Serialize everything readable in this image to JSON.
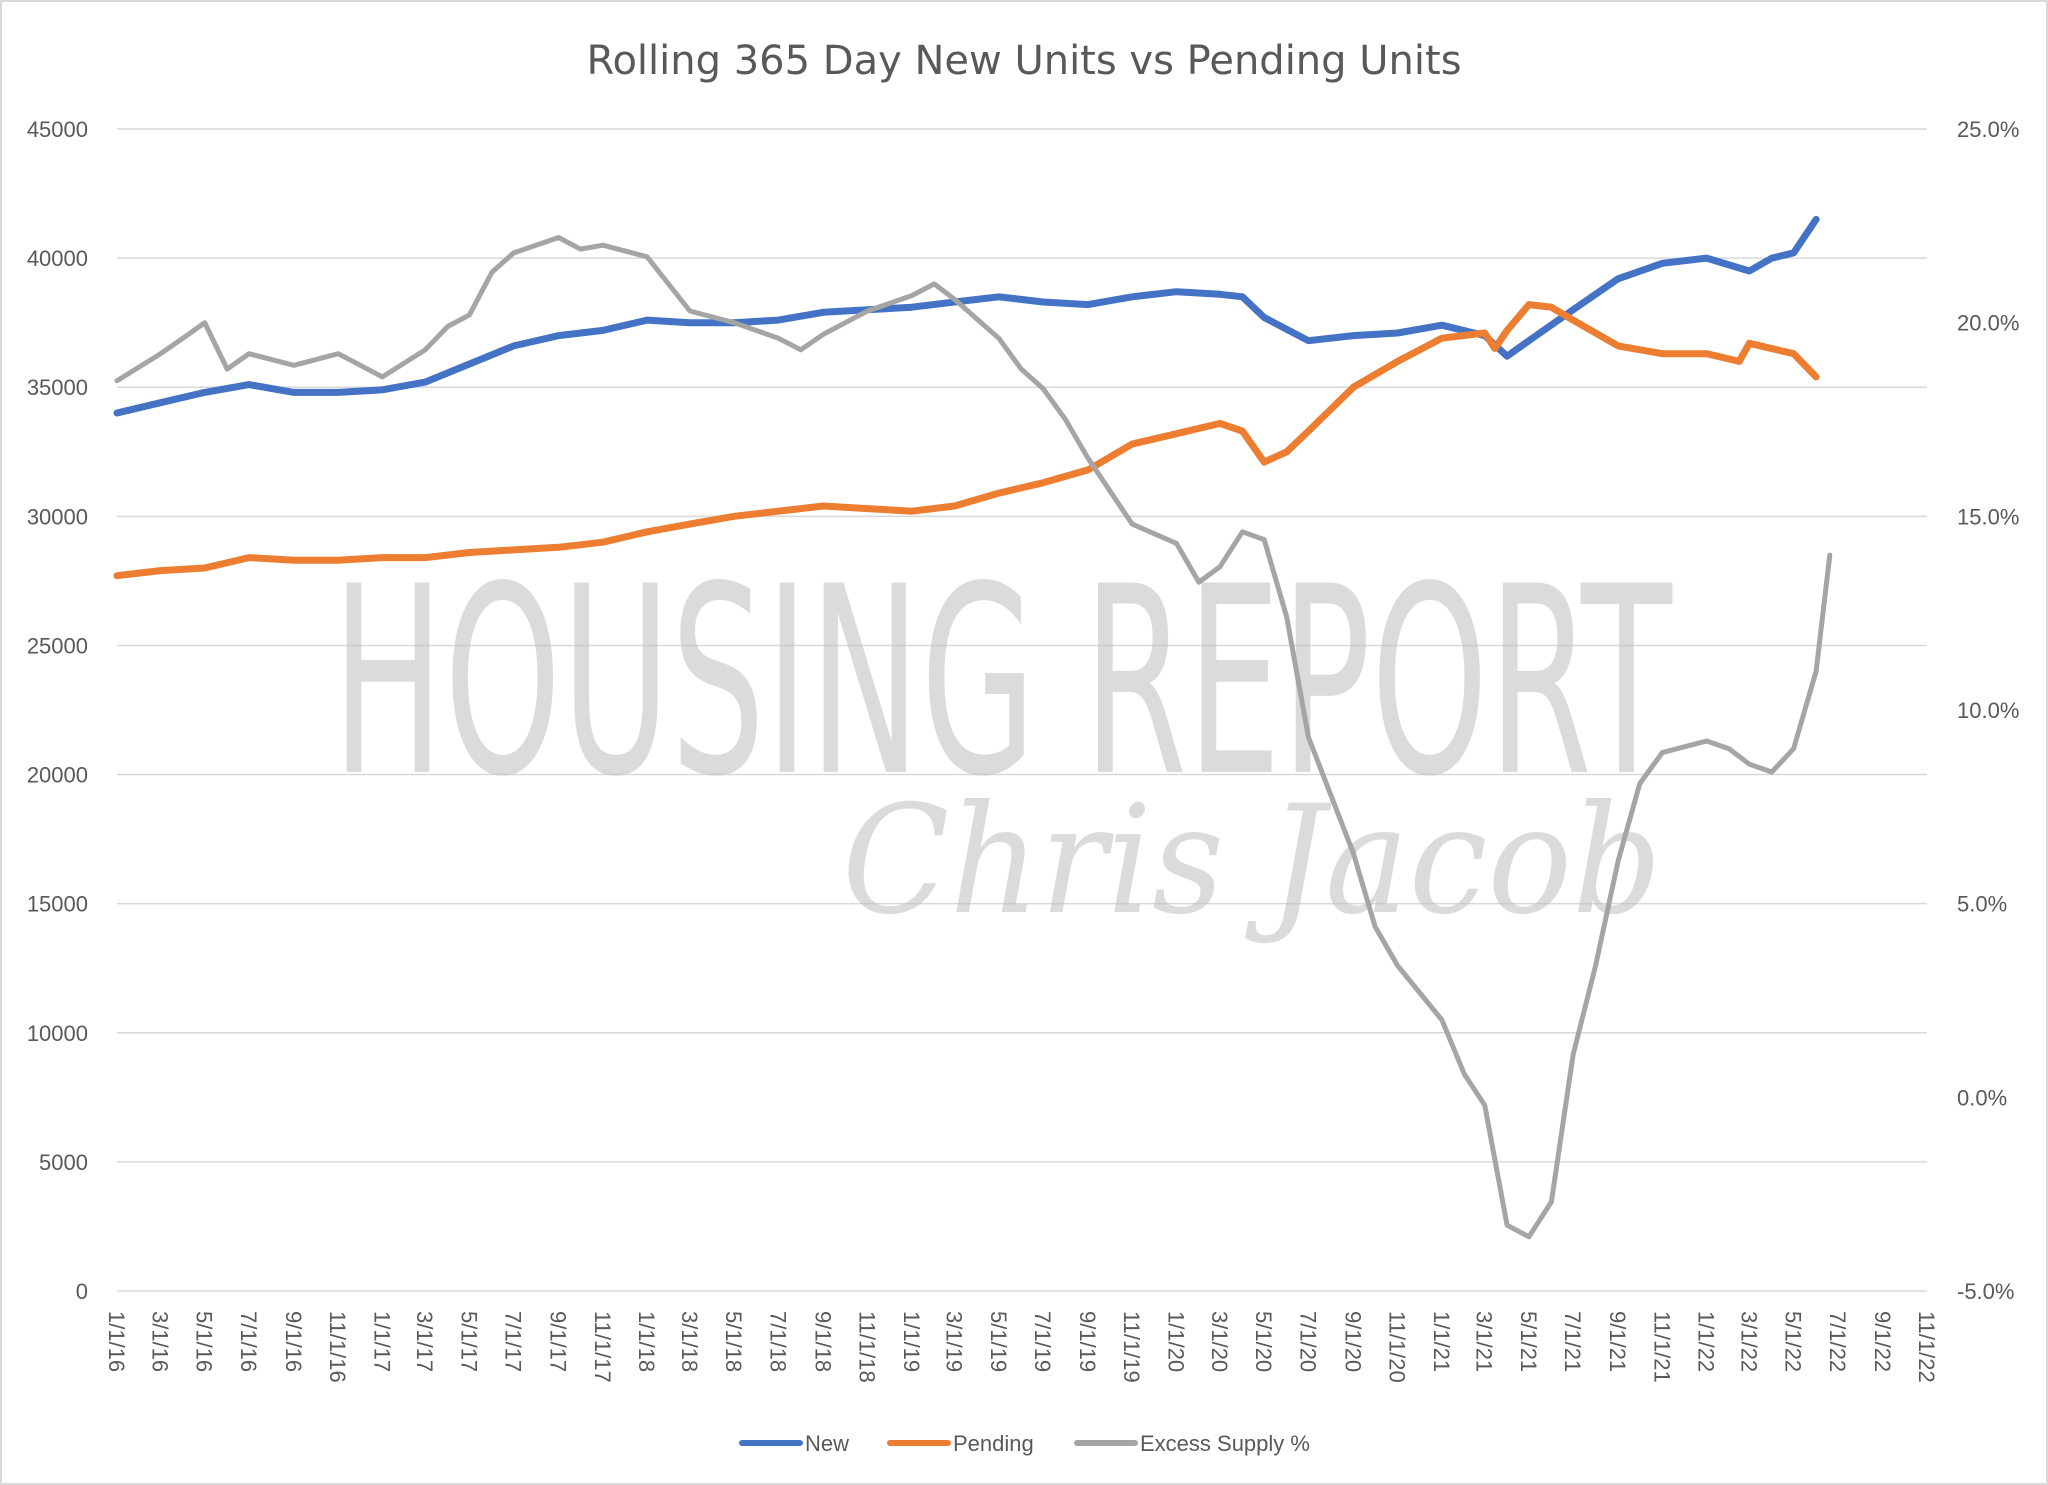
{
  "chart_data": {
    "type": "line",
    "title": "Rolling 365 Day New Units vs Pending Units",
    "watermark": {
      "line1": "HOUSING REPORT",
      "line2": "Chris Jacob"
    },
    "x_tick_labels": [
      "1/1/16",
      "3/1/16",
      "5/1/16",
      "7/1/16",
      "9/1/16",
      "11/1/16",
      "1/1/17",
      "3/1/17",
      "5/1/17",
      "7/1/17",
      "9/1/17",
      "11/1/17",
      "1/1/18",
      "3/1/18",
      "5/1/18",
      "7/1/18",
      "9/1/18",
      "11/1/18",
      "1/1/19",
      "3/1/19",
      "5/1/19",
      "7/1/19",
      "9/1/19",
      "11/1/19",
      "1/1/20",
      "3/1/20",
      "5/1/20",
      "7/1/20",
      "9/1/20",
      "11/1/20",
      "1/1/21",
      "3/1/21",
      "5/1/21",
      "7/1/21",
      "9/1/21",
      "11/1/21",
      "1/1/22",
      "3/1/22",
      "5/1/22",
      "7/1/22",
      "9/1/22",
      "11/1/22"
    ],
    "y_left": {
      "min": 0,
      "max": 45000,
      "ticks": [
        "0",
        "5000",
        "10000",
        "15000",
        "20000",
        "25000",
        "30000",
        "35000",
        "40000",
        "45000"
      ]
    },
    "y_right": {
      "min": -5.0,
      "max": 25.0,
      "ticks": [
        "-5.0%",
        "0.0%",
        "5.0%",
        "10.0%",
        "15.0%",
        "20.0%",
        "25.0%"
      ]
    },
    "gridlines": "horizontal",
    "legend_position": "bottom",
    "series": [
      {
        "name": "New",
        "color": "#4472C4",
        "axis": "left",
        "points": [
          [
            "1/1/16",
            34000
          ],
          [
            "3/1/16",
            34400
          ],
          [
            "5/1/16",
            34800
          ],
          [
            "7/1/16",
            35100
          ],
          [
            "9/1/16",
            34800
          ],
          [
            "11/1/16",
            34800
          ],
          [
            "1/1/17",
            34900
          ],
          [
            "3/1/17",
            35200
          ],
          [
            "5/1/17",
            35900
          ],
          [
            "7/1/17",
            36600
          ],
          [
            "9/1/17",
            37000
          ],
          [
            "11/1/17",
            37200
          ],
          [
            "1/1/18",
            37600
          ],
          [
            "3/1/18",
            37500
          ],
          [
            "5/1/18",
            37500
          ],
          [
            "7/1/18",
            37600
          ],
          [
            "9/1/18",
            37900
          ],
          [
            "11/1/18",
            38000
          ],
          [
            "1/1/19",
            38100
          ],
          [
            "3/1/19",
            38300
          ],
          [
            "5/1/19",
            38500
          ],
          [
            "7/1/19",
            38300
          ],
          [
            "9/1/19",
            38200
          ],
          [
            "11/1/19",
            38500
          ],
          [
            "1/1/20",
            38700
          ],
          [
            "3/1/20",
            38600
          ],
          [
            "4/1/20",
            38500
          ],
          [
            "5/1/20",
            37700
          ],
          [
            "7/1/20",
            36800
          ],
          [
            "9/1/20",
            37000
          ],
          [
            "11/1/20",
            37100
          ],
          [
            "1/1/21",
            37400
          ],
          [
            "3/1/21",
            37000
          ],
          [
            "4/1/21",
            36200
          ],
          [
            "5/1/21",
            36800
          ],
          [
            "7/1/21",
            38000
          ],
          [
            "9/1/21",
            39200
          ],
          [
            "11/1/21",
            39800
          ],
          [
            "1/1/22",
            40000
          ],
          [
            "3/1/22",
            39500
          ],
          [
            "4/1/22",
            40000
          ],
          [
            "5/1/22",
            40200
          ],
          [
            "6/1/22",
            41500
          ]
        ]
      },
      {
        "name": "Pending",
        "color": "#ED7D31",
        "axis": "left",
        "points": [
          [
            "1/1/16",
            27700
          ],
          [
            "3/1/16",
            27900
          ],
          [
            "5/1/16",
            28000
          ],
          [
            "7/1/16",
            28400
          ],
          [
            "9/1/16",
            28300
          ],
          [
            "11/1/16",
            28300
          ],
          [
            "1/1/17",
            28400
          ],
          [
            "3/1/17",
            28400
          ],
          [
            "5/1/17",
            28600
          ],
          [
            "7/1/17",
            28700
          ],
          [
            "9/1/17",
            28800
          ],
          [
            "11/1/17",
            29000
          ],
          [
            "1/1/18",
            29400
          ],
          [
            "3/1/18",
            29700
          ],
          [
            "5/1/18",
            30000
          ],
          [
            "7/1/18",
            30200
          ],
          [
            "9/1/18",
            30400
          ],
          [
            "11/1/18",
            30300
          ],
          [
            "1/1/19",
            30200
          ],
          [
            "3/1/19",
            30400
          ],
          [
            "5/1/19",
            30900
          ],
          [
            "7/1/19",
            31300
          ],
          [
            "9/1/19",
            31800
          ],
          [
            "11/1/19",
            32800
          ],
          [
            "1/1/20",
            33200
          ],
          [
            "3/1/20",
            33600
          ],
          [
            "4/1/20",
            33300
          ],
          [
            "5/1/20",
            32100
          ],
          [
            "6/1/20",
            32500
          ],
          [
            "7/1/20",
            33300
          ],
          [
            "9/1/20",
            35000
          ],
          [
            "11/1/20",
            36000
          ],
          [
            "1/1/21",
            36900
          ],
          [
            "3/1/21",
            37100
          ],
          [
            "3/15/21",
            36500
          ],
          [
            "4/1/21",
            37200
          ],
          [
            "5/1/21",
            38200
          ],
          [
            "6/1/21",
            38100
          ],
          [
            "7/1/21",
            37600
          ],
          [
            "9/1/21",
            36600
          ],
          [
            "11/1/21",
            36300
          ],
          [
            "1/1/22",
            36300
          ],
          [
            "2/15/22",
            36000
          ],
          [
            "3/1/22",
            36700
          ],
          [
            "5/1/22",
            36300
          ],
          [
            "6/1/22",
            35400
          ]
        ]
      },
      {
        "name": "Excess Supply %",
        "color": "#A5A5A5",
        "axis": "right",
        "points": [
          [
            "1/1/16",
            18.5
          ],
          [
            "3/1/16",
            19.2
          ],
          [
            "4/1/16",
            19.6
          ],
          [
            "5/1/16",
            20.0
          ],
          [
            "6/1/16",
            18.8
          ],
          [
            "7/1/16",
            19.2
          ],
          [
            "9/1/16",
            18.9
          ],
          [
            "11/1/16",
            19.2
          ],
          [
            "1/1/17",
            18.6
          ],
          [
            "3/1/17",
            19.3
          ],
          [
            "4/1/17",
            19.9
          ],
          [
            "5/1/17",
            20.2
          ],
          [
            "6/1/17",
            21.3
          ],
          [
            "7/1/17",
            21.8
          ],
          [
            "8/1/17",
            22.0
          ],
          [
            "9/1/17",
            22.2
          ],
          [
            "10/1/17",
            21.9
          ],
          [
            "11/1/17",
            22.0
          ],
          [
            "1/1/18",
            21.7
          ],
          [
            "3/1/18",
            20.3
          ],
          [
            "5/1/18",
            20.0
          ],
          [
            "7/1/18",
            19.6
          ],
          [
            "8/1/18",
            19.3
          ],
          [
            "9/1/18",
            19.7
          ],
          [
            "11/1/18",
            20.3
          ],
          [
            "1/1/19",
            20.7
          ],
          [
            "2/1/19",
            21.0
          ],
          [
            "3/1/19",
            20.6
          ],
          [
            "5/1/19",
            19.6
          ],
          [
            "6/1/19",
            18.8
          ],
          [
            "7/1/19",
            18.3
          ],
          [
            "8/1/19",
            17.5
          ],
          [
            "9/1/19",
            16.5
          ],
          [
            "11/1/19",
            14.8
          ],
          [
            "1/1/20",
            14.3
          ],
          [
            "2/1/20",
            13.3
          ],
          [
            "3/1/20",
            13.7
          ],
          [
            "4/1/20",
            14.6
          ],
          [
            "5/1/20",
            14.4
          ],
          [
            "6/1/20",
            12.4
          ],
          [
            "7/1/20",
            9.3
          ],
          [
            "8/1/20",
            7.8
          ],
          [
            "9/1/20",
            6.3
          ],
          [
            "10/1/20",
            4.4
          ],
          [
            "11/1/20",
            3.4
          ],
          [
            "1/1/21",
            2.0
          ],
          [
            "2/1/21",
            0.6
          ],
          [
            "3/1/21",
            -0.2
          ],
          [
            "4/1/21",
            -3.3
          ],
          [
            "5/1/21",
            -3.6
          ],
          [
            "6/1/21",
            -2.7
          ],
          [
            "7/1/21",
            1.1
          ],
          [
            "8/1/21",
            3.4
          ],
          [
            "9/1/21",
            6.1
          ],
          [
            "10/1/21",
            8.1
          ],
          [
            "11/1/21",
            8.9
          ],
          [
            "1/1/22",
            9.2
          ],
          [
            "2/1/22",
            9.0
          ],
          [
            "3/1/22",
            8.6
          ],
          [
            "4/1/22",
            8.4
          ],
          [
            "5/1/22",
            9.0
          ],
          [
            "6/1/22",
            11.0
          ],
          [
            "6/20/22",
            14.0
          ]
        ]
      }
    ]
  }
}
